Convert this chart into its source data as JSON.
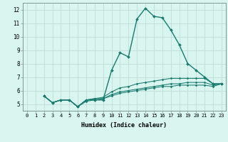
{
  "xlabel": "Humidex (Indice chaleur)",
  "bg_color": "#d8f5f0",
  "grid_color": "#c0ddd8",
  "line_color": "#1a7a6e",
  "xlim": [
    -0.5,
    23.5
  ],
  "ylim": [
    4.5,
    12.5
  ],
  "xticks": [
    0,
    1,
    2,
    3,
    4,
    5,
    6,
    7,
    8,
    9,
    10,
    11,
    12,
    13,
    14,
    15,
    16,
    17,
    18,
    19,
    20,
    21,
    22,
    23
  ],
  "yticks": [
    5,
    6,
    7,
    8,
    9,
    10,
    11,
    12
  ],
  "series": [
    [
      5.6,
      5.1,
      5.3,
      5.3,
      4.8,
      5.3,
      5.3,
      5.3,
      7.5,
      8.8,
      8.5,
      11.3,
      12.1,
      11.5,
      11.4,
      10.5,
      9.4,
      8.0,
      7.5,
      7.0,
      6.5,
      6.5
    ],
    [
      5.6,
      5.1,
      5.3,
      5.3,
      4.8,
      5.3,
      5.4,
      5.5,
      5.9,
      6.2,
      6.3,
      6.5,
      6.6,
      6.7,
      6.8,
      6.9,
      6.9,
      6.9,
      6.9,
      6.9,
      6.5,
      6.5
    ],
    [
      5.6,
      5.1,
      5.3,
      5.3,
      4.8,
      5.3,
      5.4,
      5.4,
      5.7,
      5.9,
      6.0,
      6.1,
      6.2,
      6.3,
      6.4,
      6.5,
      6.5,
      6.6,
      6.6,
      6.6,
      6.4,
      6.5
    ],
    [
      5.6,
      5.1,
      5.3,
      5.3,
      4.8,
      5.2,
      5.3,
      5.4,
      5.6,
      5.8,
      5.9,
      6.0,
      6.1,
      6.2,
      6.3,
      6.3,
      6.4,
      6.4,
      6.4,
      6.4,
      6.3,
      6.5
    ]
  ],
  "x_start": 2,
  "tick_fontsize": 5.0,
  "xlabel_fontsize": 6.0
}
